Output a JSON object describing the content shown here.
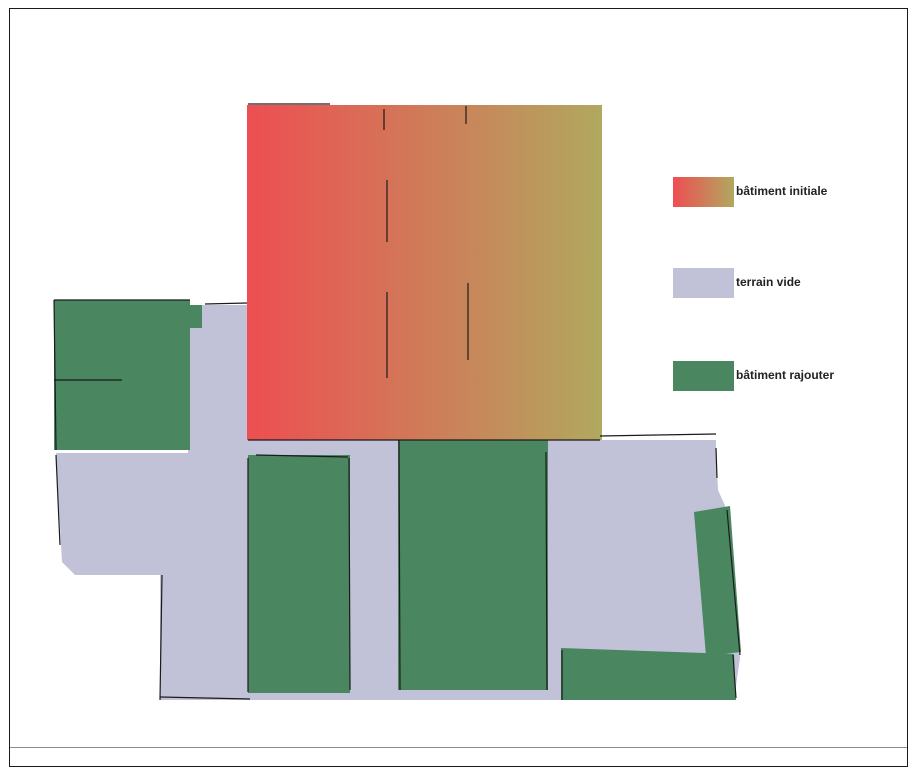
{
  "colors": {
    "initial_start": "#ee4e52",
    "initial_end": "#b1a85f",
    "empty_land": "#c1c1d8",
    "added_building": "#4a8660",
    "edge": "#1b1b1b"
  },
  "legend": {
    "initial_building": "bâtiment initiale",
    "empty_land": "terrain vide",
    "added_building": "bâtiment rajouter"
  }
}
